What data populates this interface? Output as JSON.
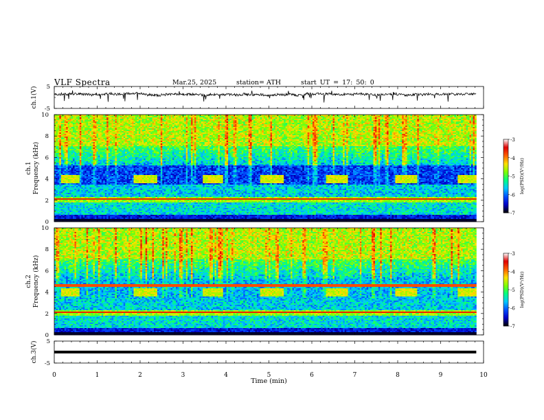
{
  "header": {
    "title": "VLF  Spectra",
    "date": "Mar.25, 2025",
    "station": "station= ATH",
    "start_ut": "start  UT  =   17: 50: 0"
  },
  "colors": {
    "trace": "#000000",
    "colormap": [
      "#000000",
      "#0000c8",
      "#0050ff",
      "#00c8ff",
      "#00ff80",
      "#80ff00",
      "#ffe000",
      "#ff6000",
      "#e00000",
      "#ffffff"
    ]
  },
  "chart_data": [
    {
      "id": "ch1_waveform",
      "type": "line",
      "ylabel": "ch.1(V)",
      "ylim": [
        -5,
        5
      ],
      "y_ticks": [
        "5",
        "-5"
      ],
      "xlim": [
        0,
        10
      ],
      "baseline_v": 1.3,
      "noise_amplitude_v": 1.0,
      "coverage_min": [
        0,
        9.83
      ]
    },
    {
      "id": "ch1_spectrogram",
      "type": "heatmap",
      "ylabel_channel": "ch.1",
      "ylabel": "Frequency  (kHz)",
      "ylim": [
        0,
        10
      ],
      "y_ticks": [
        "0",
        "2",
        "4",
        "6",
        "8",
        "10"
      ],
      "xlim": [
        0,
        10
      ],
      "colorbar_label": "log(PSD)(V²/Hz)",
      "colorbar_range": [
        -7,
        -3
      ],
      "colorbar_ticks": [
        "-3",
        "-4",
        "-5",
        "-6",
        "-7"
      ],
      "burst_band_khz": [
        3.6,
        4.4
      ],
      "burst_intervals_min": [
        [
          0.15,
          0.6
        ],
        [
          1.85,
          2.4
        ],
        [
          3.45,
          3.95
        ],
        [
          4.8,
          5.35
        ],
        [
          6.35,
          6.85
        ],
        [
          7.95,
          8.45
        ],
        [
          9.4,
          9.83
        ]
      ]
    },
    {
      "id": "ch2_spectrogram",
      "type": "heatmap",
      "ylabel_channel": "ch.2",
      "ylabel": "Frequency  (kHz)",
      "ylim": [
        0,
        10
      ],
      "y_ticks": [
        "0",
        "2",
        "4",
        "6",
        "8",
        "10"
      ],
      "xlim": [
        0,
        10
      ],
      "colorbar_label": "log(PSD)(V²/Hz)",
      "colorbar_range": [
        -7,
        -3
      ],
      "colorbar_ticks": [
        "-3",
        "-4",
        "-5",
        "-6",
        "-7"
      ],
      "burst_band_khz": [
        3.6,
        4.4
      ],
      "burst_intervals_min": [
        [
          0.15,
          0.6
        ],
        [
          1.85,
          2.4
        ],
        [
          3.45,
          3.95
        ],
        [
          4.8,
          5.35
        ],
        [
          6.35,
          6.85
        ],
        [
          7.95,
          8.45
        ],
        [
          9.4,
          9.83
        ]
      ]
    },
    {
      "id": "ch3_waveform",
      "type": "line",
      "ylabel": "ch.3(V)",
      "ylim": [
        -5,
        5
      ],
      "y_ticks": [
        "5",
        "-5"
      ],
      "xlim": [
        0,
        10
      ],
      "baseline_v": 0.0,
      "noise_amplitude_v": 0.0,
      "coverage_min": [
        0,
        9.83
      ]
    }
  ],
  "x_axis": {
    "xlabel": "Time  (min)",
    "ticks": [
      "0",
      "1",
      "2",
      "3",
      "4",
      "5",
      "6",
      "7",
      "8",
      "9",
      "10"
    ]
  }
}
